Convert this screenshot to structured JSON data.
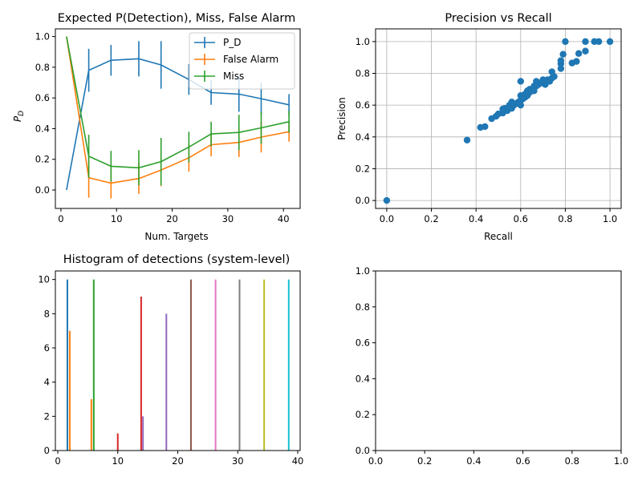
{
  "chart_data": [
    {
      "type": "line",
      "title": "Expected P(Detection), Miss, False Alarm",
      "xlabel": "Num. Targets",
      "ylabel": "P_D",
      "xlim": [
        -1,
        43
      ],
      "ylim": [
        -0.12,
        1.05
      ],
      "xticks": [
        0,
        10,
        20,
        30,
        40
      ],
      "yticks": [
        0.0,
        0.2,
        0.4,
        0.6,
        0.8,
        1.0
      ],
      "grid": false,
      "legend": "top-right",
      "series": [
        {
          "name": "P_D",
          "color": "#1f77b4",
          "x": [
            1,
            5,
            9,
            14,
            18,
            23,
            27,
            32,
            36,
            41
          ],
          "y": [
            0.0,
            0.78,
            0.845,
            0.855,
            0.815,
            0.72,
            0.635,
            0.625,
            0.595,
            0.555
          ],
          "err": [
            0,
            0.14,
            0.1,
            0.115,
            0.155,
            0.1,
            0.08,
            0.115,
            0.105,
            0.07
          ]
        },
        {
          "name": "False Alarm",
          "color": "#ff7f0e",
          "x": [
            1,
            5,
            9,
            14,
            18,
            23,
            27,
            32,
            36,
            41
          ],
          "y": [
            1.0,
            0.08,
            0.045,
            0.075,
            0.13,
            0.21,
            0.295,
            0.31,
            0.345,
            0.38
          ],
          "err": [
            0,
            0.13,
            0.1,
            0.1,
            0.105,
            0.09,
            0.075,
            0.095,
            0.1,
            0.065
          ]
        },
        {
          "name": "Miss",
          "color": "#2ca02c",
          "x": [
            1,
            5,
            9,
            14,
            18,
            23,
            27,
            32,
            36,
            41
          ],
          "y": [
            1.0,
            0.22,
            0.155,
            0.145,
            0.185,
            0.28,
            0.365,
            0.375,
            0.405,
            0.445
          ],
          "err": [
            0,
            0.14,
            0.1,
            0.115,
            0.155,
            0.1,
            0.08,
            0.115,
            0.105,
            0.07
          ]
        }
      ]
    },
    {
      "type": "scatter",
      "title": "Precision vs Recall",
      "xlabel": "Recall",
      "ylabel": "Precision",
      "xlim": [
        -0.05,
        1.05
      ],
      "ylim": [
        -0.05,
        1.08
      ],
      "xticks": [
        0.0,
        0.2,
        0.4,
        0.6,
        0.8,
        1.0
      ],
      "yticks": [
        0.0,
        0.2,
        0.4,
        0.6,
        0.8,
        1.0
      ],
      "grid": true,
      "color": "#1f77b4",
      "points": [
        [
          0.0,
          0.0
        ],
        [
          0.36,
          0.38
        ],
        [
          0.42,
          0.46
        ],
        [
          0.44,
          0.465
        ],
        [
          0.47,
          0.515
        ],
        [
          0.49,
          0.53
        ],
        [
          0.5,
          0.545
        ],
        [
          0.52,
          0.55
        ],
        [
          0.52,
          0.575
        ],
        [
          0.53,
          0.58
        ],
        [
          0.54,
          0.565
        ],
        [
          0.55,
          0.6
        ],
        [
          0.56,
          0.58
        ],
        [
          0.56,
          0.62
        ],
        [
          0.57,
          0.6
        ],
        [
          0.58,
          0.61
        ],
        [
          0.59,
          0.62
        ],
        [
          0.6,
          0.6
        ],
        [
          0.6,
          0.63
        ],
        [
          0.6,
          0.66
        ],
        [
          0.6,
          0.75
        ],
        [
          0.61,
          0.64
        ],
        [
          0.62,
          0.65
        ],
        [
          0.62,
          0.67
        ],
        [
          0.63,
          0.66
        ],
        [
          0.63,
          0.69
        ],
        [
          0.64,
          0.68
        ],
        [
          0.64,
          0.7
        ],
        [
          0.65,
          0.7
        ],
        [
          0.66,
          0.69
        ],
        [
          0.66,
          0.72
        ],
        [
          0.67,
          0.72
        ],
        [
          0.67,
          0.75
        ],
        [
          0.68,
          0.73
        ],
        [
          0.69,
          0.74
        ],
        [
          0.7,
          0.74
        ],
        [
          0.7,
          0.76
        ],
        [
          0.71,
          0.73
        ],
        [
          0.71,
          0.75
        ],
        [
          0.72,
          0.76
        ],
        [
          0.73,
          0.75
        ],
        [
          0.74,
          0.77
        ],
        [
          0.74,
          0.81
        ],
        [
          0.75,
          0.78
        ],
        [
          0.78,
          0.83
        ],
        [
          0.78,
          0.86
        ],
        [
          0.78,
          0.88
        ],
        [
          0.79,
          0.92
        ],
        [
          0.8,
          1.0
        ],
        [
          0.83,
          0.865
        ],
        [
          0.85,
          0.875
        ],
        [
          0.86,
          0.925
        ],
        [
          0.89,
          0.94
        ],
        [
          0.89,
          1.0
        ],
        [
          0.93,
          1.0
        ],
        [
          0.95,
          1.0
        ],
        [
          1.0,
          1.0
        ]
      ]
    },
    {
      "type": "bar",
      "title": "Histogram of detections (system-level)",
      "xlim": [
        -0.4,
        40.4
      ],
      "ylim": [
        0,
        10.5
      ],
      "xticks": [
        0,
        10,
        20,
        30,
        40
      ],
      "yticks": [
        0,
        2,
        4,
        6,
        8,
        10
      ],
      "grid": false,
      "bars": [
        {
          "x": 1.6,
          "height": 10,
          "color": "#1f77b4"
        },
        {
          "x": 2.0,
          "height": 7,
          "color": "#ff7f0e"
        },
        {
          "x": 5.6,
          "height": 3,
          "color": "#ff7f0e"
        },
        {
          "x": 6.0,
          "height": 10,
          "color": "#2ca02c"
        },
        {
          "x": 10.0,
          "height": 1,
          "color": "#d62728"
        },
        {
          "x": 13.9,
          "height": 9,
          "color": "#d62728"
        },
        {
          "x": 14.2,
          "height": 2,
          "color": "#9467bd"
        },
        {
          "x": 18.1,
          "height": 8,
          "color": "#9467bd"
        },
        {
          "x": 22.2,
          "height": 10,
          "color": "#8c564b"
        },
        {
          "x": 26.3,
          "height": 10,
          "color": "#e377c2"
        },
        {
          "x": 30.3,
          "height": 10,
          "color": "#7f7f7f"
        },
        {
          "x": 34.4,
          "height": 10,
          "color": "#bcbd22"
        },
        {
          "x": 38.5,
          "height": 10,
          "color": "#17becf"
        }
      ]
    },
    {
      "type": "scatter",
      "title": "",
      "xlim": [
        0,
        1
      ],
      "ylim": [
        0,
        1
      ],
      "xticks": [
        0.0,
        0.2,
        0.4,
        0.6,
        0.8,
        1.0
      ],
      "yticks": [
        0.0,
        0.2,
        0.4,
        0.6,
        0.8,
        1.0
      ],
      "grid": false,
      "points": []
    }
  ]
}
